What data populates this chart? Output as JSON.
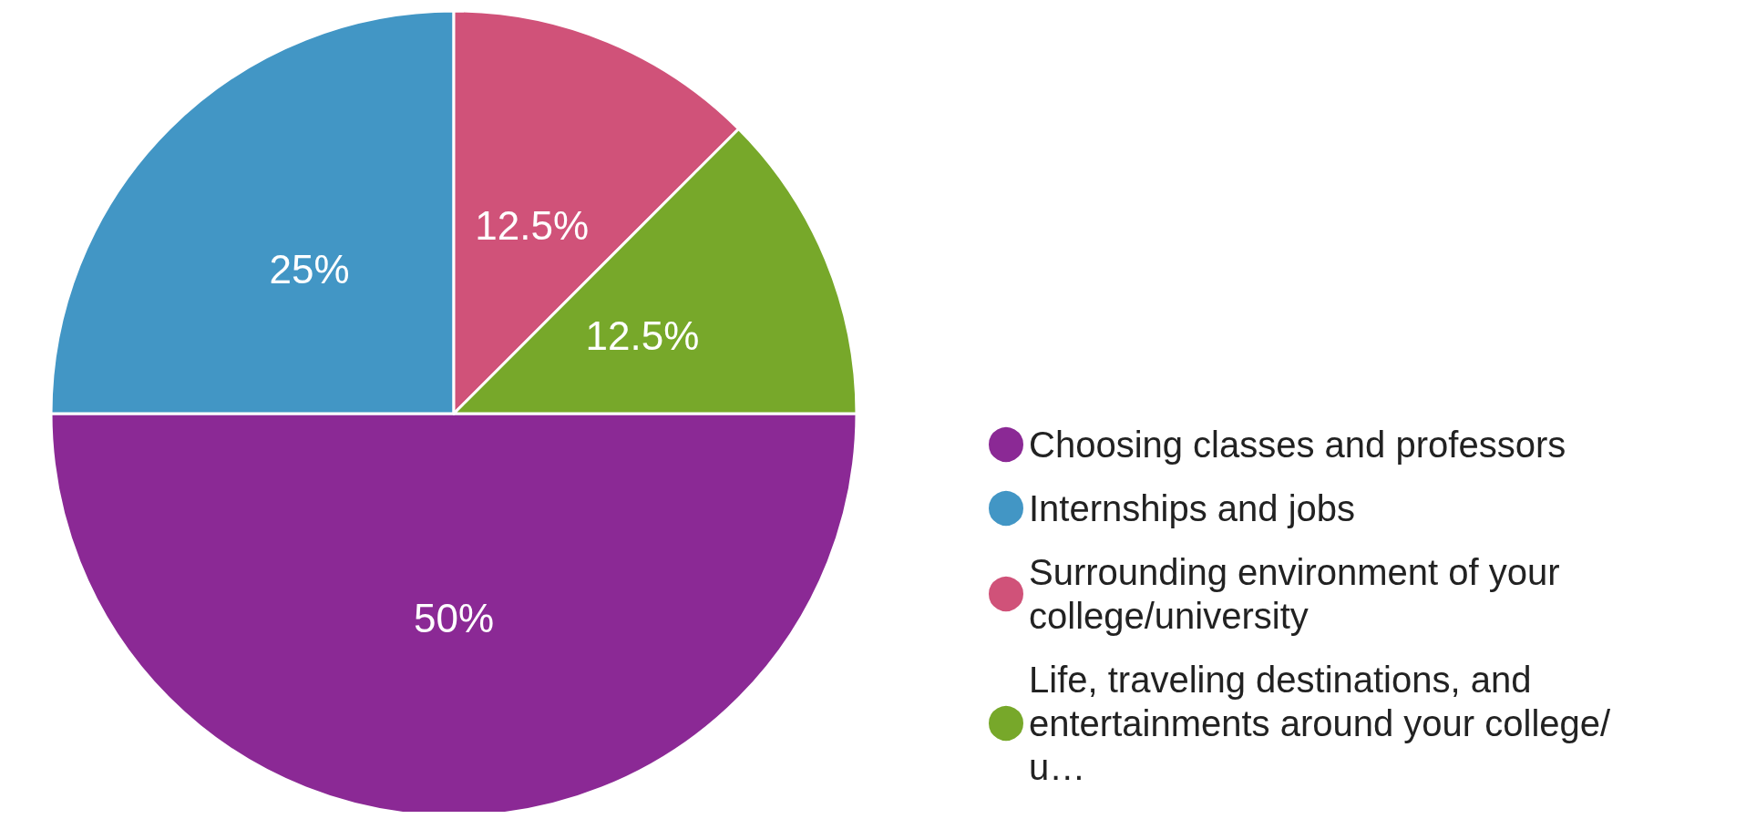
{
  "chart_data": {
    "type": "pie",
    "categories": [
      "Choosing classes and professors",
      "Internships and jobs",
      "Surrounding environment of your college/university",
      "Life, traveling destinations, and entertainments around your college/u…"
    ],
    "values": [
      50,
      25,
      12.5,
      12.5
    ],
    "colors": [
      "#8b2995",
      "#4296c5",
      "#d05279",
      "#77a82a"
    ],
    "value_labels": [
      "50%",
      "25%",
      "12.5%",
      "12.5%"
    ],
    "legend": "bottom right"
  }
}
